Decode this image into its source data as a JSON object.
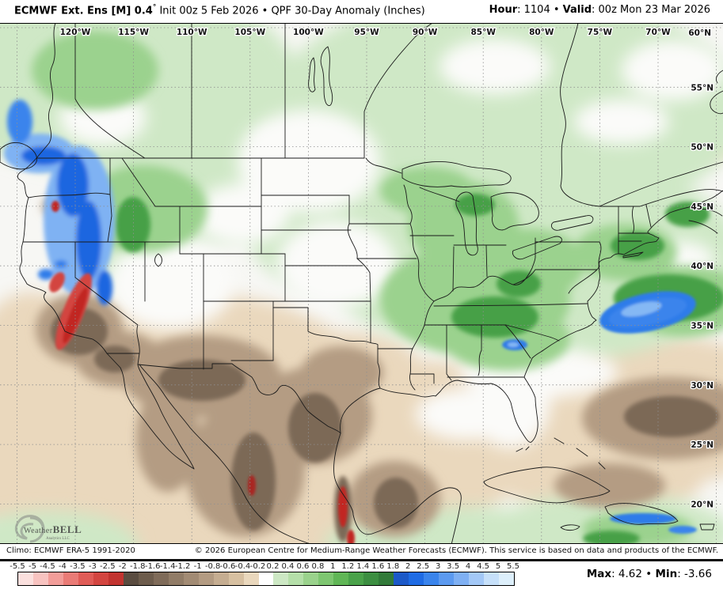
{
  "header": {
    "title_bold": "ECMWF Ext. Ens [M] 0.4",
    "title_degree": "°",
    "title_rest": " Init 00z 5 Feb 2026 • QPF 30-Day Anomaly (Inches)",
    "hour_label": "Hour",
    "hour_rest": ": 1104",
    "separator": " • ",
    "valid_label": "Valid",
    "valid_rest": ": 00z Mon 23 Mar 2026"
  },
  "map": {
    "lon_labels": [
      "120°W",
      "115°W",
      "110°W",
      "105°W",
      "100°W",
      "95°W",
      "90°W",
      "85°W",
      "80°W",
      "75°W",
      "70°W"
    ],
    "lat_labels": [
      "60°N",
      "55°N",
      "50°N",
      "45°N",
      "40°N",
      "35°N",
      "30°N",
      "25°N",
      "20°N"
    ],
    "logo": {
      "name_a": "Weather",
      "name_b": "BELL",
      "sub": "Analytics LLC"
    }
  },
  "footer": {
    "climo": "Climo: ECMWF ERA-5 1991-2020",
    "copyright": "© 2026 European Centre for Medium-Range Weather Forecasts (ECMWF). This service is based on data and products of the ECMWF."
  },
  "colorbar": {
    "ticks": [
      "-5.5",
      "-5",
      "-4.5",
      "-4",
      "-3.5",
      "-3",
      "-2.5",
      "-2",
      "-1.8",
      "-1.6",
      "-1.4",
      "-1.2",
      "-1",
      "-0.8",
      "-0.6",
      "-0.4",
      "-0.2",
      "0.2",
      "0.4",
      "0.6",
      "0.8",
      "1",
      "1.2",
      "1.4",
      "1.6",
      "1.8",
      "2",
      "2.5",
      "3",
      "3.5",
      "4",
      "4.5",
      "5",
      "5.5"
    ],
    "colors": [
      "#fbe0de",
      "#f8c3c0",
      "#f29d99",
      "#ea7b76",
      "#e05c57",
      "#d34540",
      "#c23430",
      "#5a4c40",
      "#6d5c4c",
      "#7f6b59",
      "#917c67",
      "#a28b74",
      "#b39b82",
      "#c5ad91",
      "#d7c0a1",
      "#ead8bd",
      "#ffffff",
      "#cde8c4",
      "#b5dfa9",
      "#9ad28c",
      "#7ec671",
      "#60b656",
      "#4aa24a",
      "#3c8e41",
      "#327a39",
      "#1c59c8",
      "#1f6be4",
      "#3a84ec",
      "#5c9af0",
      "#7fb0f3",
      "#a3c8f7",
      "#c6e0fa",
      "#ddeffb"
    ],
    "max_label": "Max",
    "max_rest": ": 4.62",
    "separator": " • ",
    "min_label": "Min",
    "min_rest": ": -3.66"
  }
}
